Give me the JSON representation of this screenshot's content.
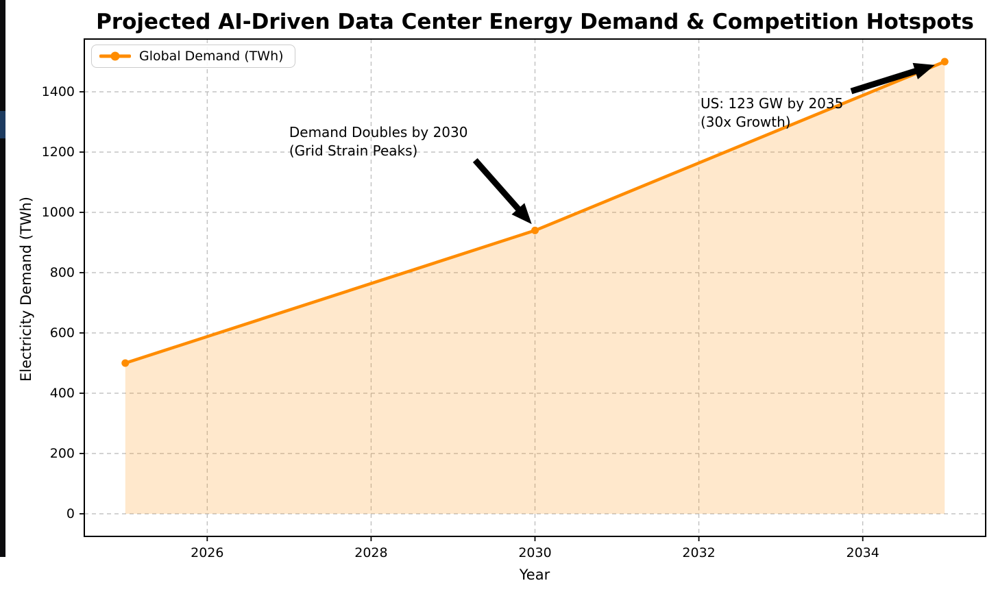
{
  "chart_data": {
    "type": "line",
    "title": "Projected AI-Driven Data Center Energy Demand & Competition Hotspots",
    "xlabel": "Year",
    "ylabel": "Electricity Demand (TWh)",
    "x": [
      2025,
      2030,
      2035
    ],
    "series": [
      {
        "name": "Global Demand (TWh)",
        "values": [
          500,
          940,
          1500
        ],
        "color": "#FF8C00",
        "marker": "circle",
        "area_fill": true
      }
    ],
    "xlim": [
      2024.5,
      2035.5
    ],
    "ylim": [
      -75,
      1575
    ],
    "xticks": [
      2026,
      2028,
      2030,
      2032,
      2034
    ],
    "yticks": [
      0,
      200,
      400,
      600,
      800,
      1000,
      1200,
      1400
    ],
    "grid": "dashed",
    "legend": {
      "position": "upper-left"
    },
    "annotations": [
      {
        "id": "demand-doubles-2030",
        "lines": [
          "Demand Doubles by 2030",
          "(Grid Strain Peaks)"
        ],
        "text_pos": [
          2027.0,
          1296
        ],
        "arrow_from": [
          2029.27,
          1173
        ],
        "arrow_to": [
          2029.96,
          961
        ]
      },
      {
        "id": "us-123gw-2035",
        "lines": [
          "US: 123 GW by 2035",
          "(30x Growth)"
        ],
        "text_pos": [
          2032.02,
          1391
        ],
        "arrow_from": [
          2033.86,
          1402
        ],
        "arrow_to": [
          2034.88,
          1489
        ]
      }
    ],
    "colors": {
      "line": "#FF8C00",
      "area_fill": "rgba(255,140,0,0.2)",
      "grid": "#b8b8b8",
      "arrow": "#000000",
      "axes": "#000000"
    }
  }
}
